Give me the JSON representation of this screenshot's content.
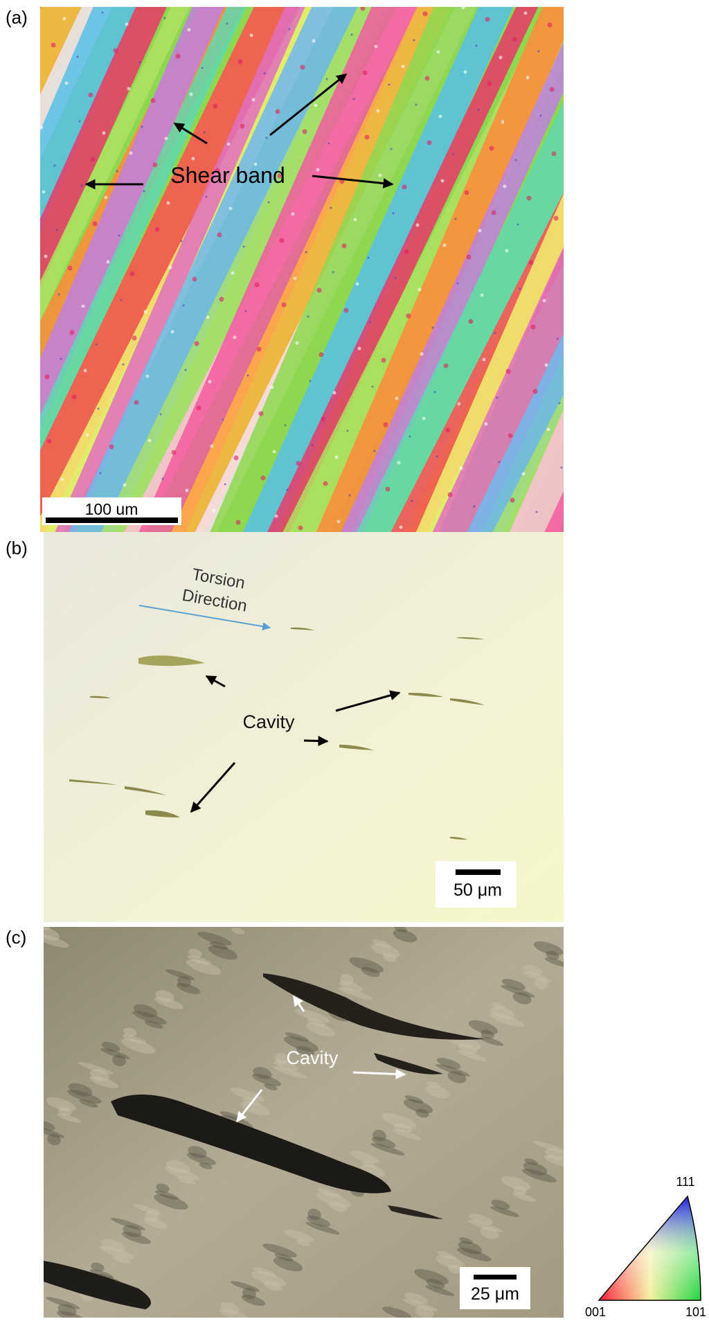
{
  "panels": [
    {
      "label": "(a)",
      "annotation": "Shear band",
      "scale_bar": "100 um"
    },
    {
      "label": "(b)",
      "direction_lines": [
        "Torsion",
        "Direction"
      ],
      "annotation": "Cavity",
      "scale_bar": "50 μm"
    },
    {
      "label": "(c)",
      "annotation": "Cavity",
      "scale_bar": "25 μm"
    }
  ],
  "ipf_legend": {
    "top": "111",
    "left": "001",
    "right": "101"
  }
}
